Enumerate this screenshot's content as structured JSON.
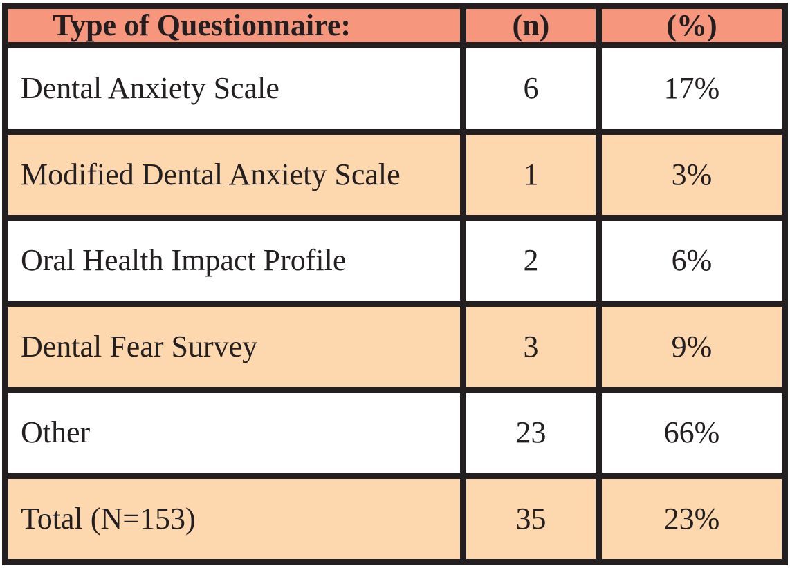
{
  "chart_data": {
    "type": "table",
    "columns": [
      "Type of Questionnaire:",
      "(n)",
      "(%)"
    ],
    "rows": [
      {
        "label": "Dental Anxiety Scale",
        "n": "6",
        "pct": "17%"
      },
      {
        "label": "Modified Dental Anxiety Scale",
        "n": "1",
        "pct": "3%"
      },
      {
        "label": "Oral Health Impact Profile",
        "n": "2",
        "pct": "6%"
      },
      {
        "label": "Dental Fear Survey",
        "n": "3",
        "pct": "9%"
      },
      {
        "label": "Other",
        "n": "23",
        "pct": "66%"
      },
      {
        "label": "Total (N=153)",
        "n": "35",
        "pct": "23%"
      }
    ],
    "total_sample": "N=153",
    "layout_hints": {
      "header_fill": "salmon",
      "row_striping": "white / peach alternating, starting white",
      "grid": "thick dark collapsed borders",
      "label_column_align": "left",
      "value_columns_align": "center"
    }
  },
  "colors": {
    "header_bg": "#F5967D",
    "alt_row_bg": "#FDD8AE",
    "row_bg": "#FFFFFF",
    "border": "#231F20",
    "text": "#231F20"
  }
}
